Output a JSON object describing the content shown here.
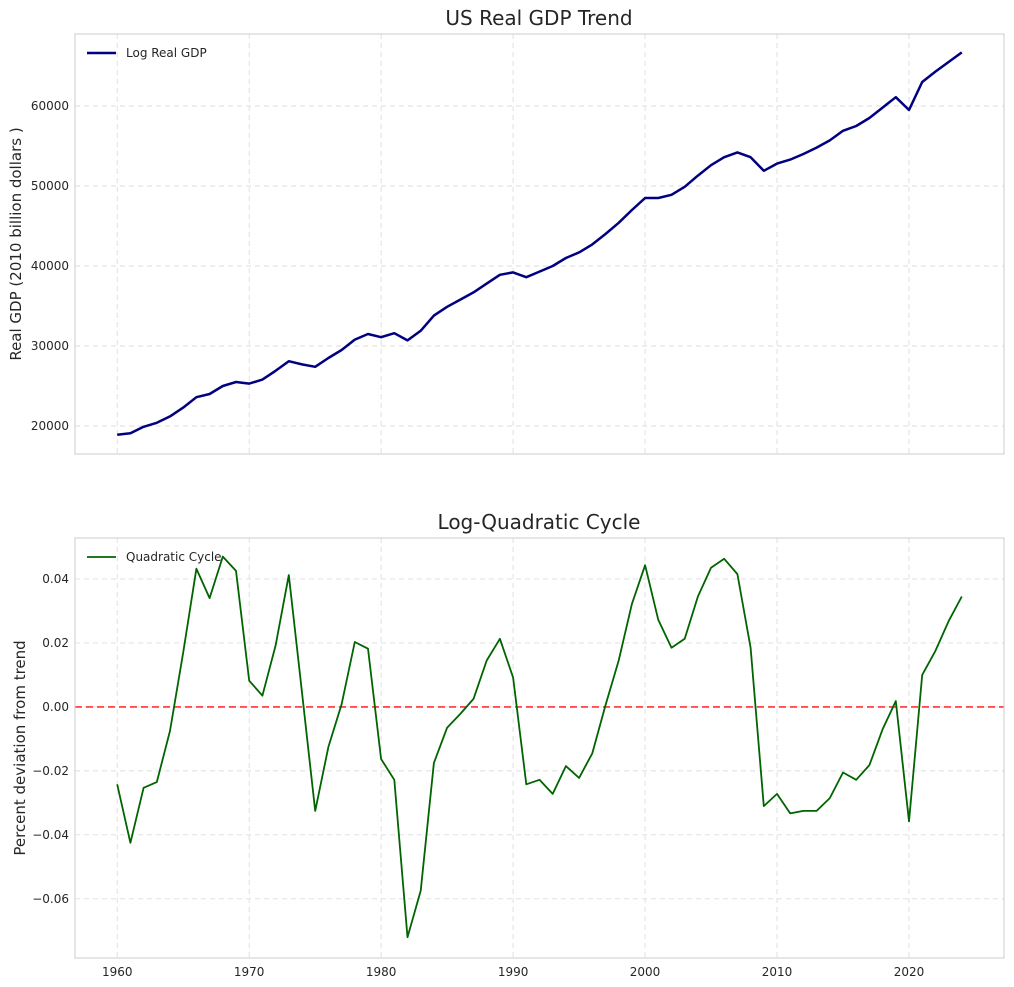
{
  "chart_data": [
    {
      "type": "line",
      "title": "US Real GDP Trend",
      "xlabel": "",
      "ylabel": "Real GDP (2010 billion dollars )",
      "xlim": [
        1956.8,
        2027.2
      ],
      "ylim": [
        16500,
        69000
      ],
      "xticks": [
        1960,
        1970,
        1980,
        1990,
        2000,
        2010,
        2020
      ],
      "xtick_labels_visible": false,
      "yticks": [
        20000,
        30000,
        40000,
        50000,
        60000
      ],
      "grid": true,
      "legend": "top-left",
      "series": [
        {
          "name": "Log Real GDP",
          "color": "#000080",
          "x": [
            1960,
            1961,
            1962,
            1963,
            1964,
            1965,
            1966,
            1967,
            1968,
            1969,
            1970,
            1971,
            1972,
            1973,
            1974,
            1975,
            1976,
            1977,
            1978,
            1979,
            1980,
            1981,
            1982,
            1983,
            1984,
            1985,
            1986,
            1987,
            1988,
            1989,
            1990,
            1991,
            1992,
            1993,
            1994,
            1995,
            1996,
            1997,
            1998,
            1999,
            2000,
            2001,
            2002,
            2003,
            2004,
            2005,
            2006,
            2007,
            2008,
            2009,
            2010,
            2011,
            2012,
            2013,
            2014,
            2015,
            2016,
            2017,
            2018,
            2019,
            2020,
            2021,
            2022,
            2023,
            2024
          ],
          "values": [
            18900,
            19100,
            19900,
            20400,
            21200,
            22300,
            23600,
            24000,
            25000,
            25500,
            25300,
            25800,
            26900,
            28100,
            27700,
            27400,
            28500,
            29500,
            30800,
            31500,
            31100,
            31600,
            30700,
            31900,
            33800,
            34900,
            35800,
            36700,
            37800,
            38900,
            39200,
            38600,
            39300,
            40000,
            41000,
            41700,
            42700,
            44000,
            45400,
            47000,
            48500,
            48500,
            48900,
            49900,
            51300,
            52600,
            53600,
            54200,
            53600,
            51900,
            52800,
            53300,
            54000,
            54800,
            55700,
            56900,
            57500,
            58500,
            59800,
            61100,
            59500,
            63000,
            64300,
            65500,
            66700
          ]
        }
      ]
    },
    {
      "type": "line",
      "title": "Log-Quadratic Cycle",
      "xlabel": "",
      "ylabel": "Percent deviation from trend",
      "xlim": [
        1956.8,
        2027.2
      ],
      "ylim": [
        -0.0785,
        0.0528
      ],
      "xticks": [
        1960,
        1970,
        1980,
        1990,
        2000,
        2010,
        2020
      ],
      "yticks": [
        -0.06,
        -0.04,
        -0.02,
        0.0,
        0.02,
        0.04
      ],
      "ytick_labels": [
        "−0.06",
        "−0.04",
        "−0.02",
        "0.00",
        "0.02",
        "0.04"
      ],
      "grid": true,
      "legend": "top-left",
      "reference_line": {
        "y": 0.0,
        "color": "#ff3333",
        "style": "dashed"
      },
      "series": [
        {
          "name": "Quadratic Cycle",
          "color": "#006400",
          "x": [
            1960,
            1961,
            1962,
            1963,
            1964,
            1965,
            1966,
            1967,
            1968,
            1969,
            1970,
            1971,
            1972,
            1973,
            1974,
            1975,
            1976,
            1977,
            1978,
            1979,
            1980,
            1981,
            1982,
            1983,
            1984,
            1985,
            1986,
            1987,
            1988,
            1989,
            1990,
            1991,
            1992,
            1993,
            1994,
            1995,
            1996,
            1997,
            1998,
            1999,
            2000,
            2001,
            2002,
            2003,
            2004,
            2005,
            2006,
            2007,
            2008,
            2009,
            2010,
            2011,
            2012,
            2013,
            2014,
            2015,
            2016,
            2017,
            2018,
            2019,
            2020,
            2021,
            2022,
            2023,
            2024
          ],
          "values": [
            -0.0242,
            -0.0425,
            -0.0253,
            -0.0235,
            -0.0075,
            0.017,
            0.0432,
            0.034,
            0.047,
            0.0425,
            0.0082,
            0.0035,
            0.0192,
            0.0412,
            0.0045,
            -0.0325,
            -0.0125,
            0.0008,
            0.0203,
            0.0182,
            -0.0163,
            -0.0228,
            -0.072,
            -0.0575,
            -0.0175,
            -0.0065,
            -0.0022,
            0.0025,
            0.0145,
            0.0213,
            0.0092,
            -0.0242,
            -0.0228,
            -0.0272,
            -0.0185,
            -0.0222,
            -0.0145,
            0.0005,
            0.0145,
            0.0322,
            0.0443,
            0.0272,
            0.0185,
            0.0213,
            0.0345,
            0.0435,
            0.0463,
            0.0415,
            0.0185,
            -0.031,
            -0.0272,
            -0.0333,
            -0.0325,
            -0.0325,
            -0.0285,
            -0.0205,
            -0.0228,
            -0.0182,
            -0.007,
            0.0018,
            -0.0358,
            0.01,
            0.0175,
            0.0268,
            0.0345
          ]
        }
      ]
    }
  ]
}
